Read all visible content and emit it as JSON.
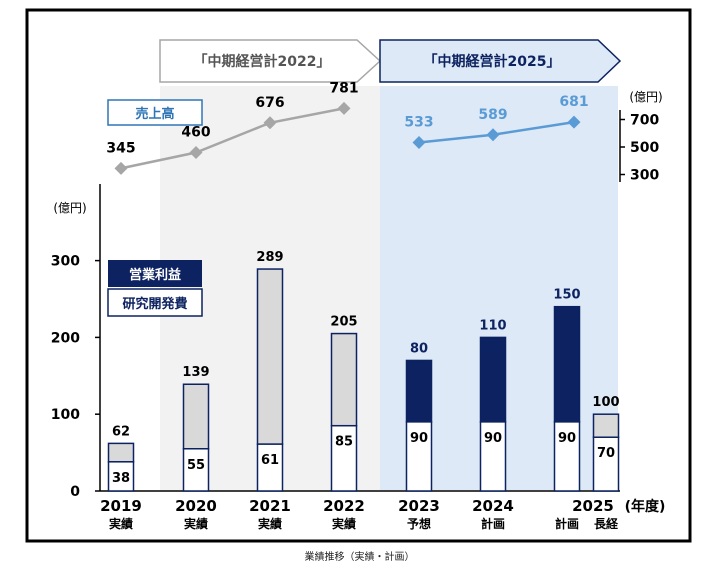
{
  "chart_data": {
    "type": "bar",
    "periods": {
      "plan2022": "「中期経営計2022」",
      "plan2025": "「中期経営計2025」"
    },
    "categories": [
      "2019",
      "2020",
      "2021",
      "2022",
      "2023",
      "2024",
      "2025",
      "2025"
    ],
    "category_sublabels": [
      "実績",
      "実績",
      "実績",
      "実績",
      "予想",
      "計画",
      "計画",
      "長経"
    ],
    "x_unit": "(年度)",
    "left_axis": {
      "unit": "(億円)",
      "ticks": [
        0,
        100,
        200,
        300
      ],
      "ylim": [
        0,
        380
      ]
    },
    "right_axis": {
      "unit": "(億円)",
      "ticks": [
        300,
        500,
        700
      ]
    },
    "legend": {
      "operating_profit": "営業利益",
      "rd": "研究開発費"
    },
    "bars": {
      "rd_values": [
        38,
        55,
        61,
        85,
        90,
        90,
        90,
        70
      ],
      "top_values": [
        62,
        139,
        289,
        205,
        80,
        110,
        150,
        100
      ],
      "top_kind": [
        "rd_total",
        "rd_total",
        "rd_total",
        "rd_total",
        "profit",
        "profit",
        "profit",
        "rd_total"
      ]
    },
    "sales_badge": "売上高",
    "sales": {
      "actual": [
        345,
        460,
        676,
        781
      ],
      "plan": [
        533,
        589,
        681
      ]
    },
    "caption": "業績推移（実績・計画）",
    "colors": {
      "navy": "#0d2260",
      "grey_bar": "#d9d9d9",
      "sales_actual": "#a6a6a6",
      "sales_plan": "#5b9bd5",
      "band_2022": "#f2f2f2",
      "band_2025": "#dde9f6"
    }
  }
}
